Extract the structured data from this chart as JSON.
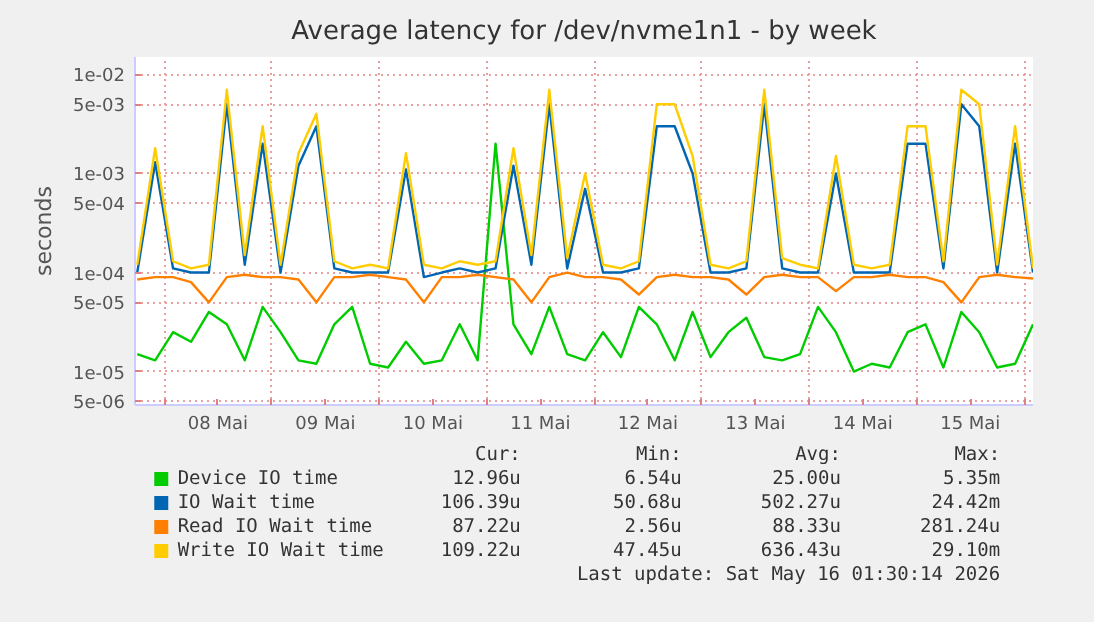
{
  "chart_data": {
    "type": "line",
    "title": "Average latency for /dev/nvme1n1 - by week",
    "ylabel": "seconds",
    "x": [
      "2026-05-07T18:00",
      "2026-05-07T22:00",
      "2026-05-08T02:00",
      "2026-05-08T06:00",
      "2026-05-08T10:00",
      "2026-05-08T14:00",
      "2026-05-08T18:00",
      "2026-05-08T22:00",
      "2026-05-09T02:00",
      "2026-05-09T06:00",
      "2026-05-09T10:00",
      "2026-05-09T14:00",
      "2026-05-09T18:00",
      "2026-05-09T22:00",
      "2026-05-10T02:00",
      "2026-05-10T06:00",
      "2026-05-10T10:00",
      "2026-05-10T14:00",
      "2026-05-10T18:00",
      "2026-05-10T22:00",
      "2026-05-11T02:00",
      "2026-05-11T06:00",
      "2026-05-11T10:00",
      "2026-05-11T14:00",
      "2026-05-11T18:00",
      "2026-05-11T22:00",
      "2026-05-12T02:00",
      "2026-05-12T06:00",
      "2026-05-12T10:00",
      "2026-05-12T14:00",
      "2026-05-12T18:00",
      "2026-05-12T22:00",
      "2026-05-13T02:00",
      "2026-05-13T06:00",
      "2026-05-13T10:00",
      "2026-05-13T14:00",
      "2026-05-13T18:00",
      "2026-05-13T22:00",
      "2026-05-14T02:00",
      "2026-05-14T06:00",
      "2026-05-14T10:00",
      "2026-05-14T14:00",
      "2026-05-14T18:00",
      "2026-05-14T22:00",
      "2026-05-15T02:00",
      "2026-05-15T06:00",
      "2026-05-15T10:00",
      "2026-05-15T14:00",
      "2026-05-15T18:00",
      "2026-05-15T22:00",
      "2026-05-16T02:00"
    ],
    "series": [
      {
        "name": "Device IO time",
        "color": "#00cc00",
        "values": [
          1.5e-05,
          1.3e-05,
          2.5e-05,
          2e-05,
          4e-05,
          3e-05,
          1.3e-05,
          4.5e-05,
          2.5e-05,
          1.3e-05,
          1.2e-05,
          3e-05,
          4.5e-05,
          1.2e-05,
          1.1e-05,
          2e-05,
          1.2e-05,
          1.3e-05,
          3e-05,
          1.3e-05,
          0.002,
          3e-05,
          1.5e-05,
          4.5e-05,
          1.5e-05,
          1.3e-05,
          2.5e-05,
          1.4e-05,
          4.5e-05,
          3e-05,
          1.3e-05,
          4e-05,
          1.4e-05,
          2.5e-05,
          3.5e-05,
          1.4e-05,
          1.3e-05,
          1.5e-05,
          4.5e-05,
          2.5e-05,
          1e-05,
          1.2e-05,
          1.1e-05,
          2.5e-05,
          3e-05,
          1.1e-05,
          4e-05,
          2.5e-05,
          1.1e-05,
          1.2e-05,
          3e-05
        ]
      },
      {
        "name": "IO Wait time",
        "color": "#0066b3",
        "values": [
          0.0001,
          0.0013,
          0.00011,
          0.0001,
          0.0001,
          0.005,
          0.00012,
          0.002,
          0.0001,
          0.0012,
          0.003,
          0.00011,
          0.0001,
          0.0001,
          0.0001,
          0.0011,
          9e-05,
          0.0001,
          0.00011,
          0.0001,
          0.00011,
          0.0012,
          0.00012,
          0.005,
          0.00011,
          0.0007,
          0.0001,
          0.0001,
          0.00011,
          0.003,
          0.003,
          0.001,
          0.0001,
          0.0001,
          0.00011,
          0.005,
          0.00011,
          0.0001,
          0.0001,
          0.001,
          0.0001,
          0.0001,
          0.0001,
          0.002,
          0.002,
          0.00011,
          0.005,
          0.003,
          0.0001,
          0.002,
          0.0001
        ]
      },
      {
        "name": "Read IO Wait time",
        "color": "#ff8000",
        "values": [
          8.5e-05,
          9e-05,
          9e-05,
          8e-05,
          5e-05,
          9e-05,
          9.5e-05,
          9e-05,
          9e-05,
          8.5e-05,
          5e-05,
          9e-05,
          9e-05,
          9.5e-05,
          9e-05,
          8.5e-05,
          5e-05,
          9e-05,
          9e-05,
          9.5e-05,
          9e-05,
          8.5e-05,
          5e-05,
          9e-05,
          0.0001,
          9e-05,
          9e-05,
          8.5e-05,
          6e-05,
          9e-05,
          9.5e-05,
          9e-05,
          9e-05,
          8.5e-05,
          6e-05,
          9e-05,
          9.5e-05,
          9e-05,
          9e-05,
          6.5e-05,
          9e-05,
          9e-05,
          9.5e-05,
          9e-05,
          9e-05,
          8e-05,
          5e-05,
          9e-05,
          9.5e-05,
          9e-05,
          8.7e-05
        ]
      },
      {
        "name": "Write IO Wait time",
        "color": "#ffcc00",
        "values": [
          0.00012,
          0.0018,
          0.00013,
          0.00011,
          0.00012,
          0.007,
          0.00015,
          0.003,
          0.00012,
          0.0016,
          0.004,
          0.00013,
          0.00011,
          0.00012,
          0.00011,
          0.0016,
          0.00012,
          0.00011,
          0.00013,
          0.00012,
          0.00013,
          0.0018,
          0.00015,
          0.007,
          0.00014,
          0.001,
          0.00012,
          0.00011,
          0.00013,
          0.005,
          0.005,
          0.0015,
          0.00012,
          0.00011,
          0.00013,
          0.007,
          0.00014,
          0.00012,
          0.00011,
          0.0015,
          0.00012,
          0.00011,
          0.00012,
          0.003,
          0.003,
          0.00013,
          0.007,
          0.005,
          0.00012,
          0.003,
          0.00011
        ]
      }
    ],
    "log": "y",
    "ylim": [
      4.6e-06,
      0.015
    ],
    "yticks": [
      {
        "value": 5e-06,
        "label": "5e-06"
      },
      {
        "value": 1e-05,
        "label": "1e-05"
      },
      {
        "value": 5e-05,
        "label": "5e-05"
      },
      {
        "value": 0.0001,
        "label": "1e-04"
      },
      {
        "value": 0.0005,
        "label": "5e-04"
      },
      {
        "value": 0.001,
        "label": "1e-03"
      },
      {
        "value": 0.005,
        "label": "5e-03"
      },
      {
        "value": 0.01,
        "label": "1e-02"
      }
    ],
    "xlim": [
      "2026-05-07T17:30",
      "2026-05-16T02:00"
    ],
    "xticks": [
      {
        "value": "2026-05-08T00:00",
        "label": null
      },
      {
        "value": "2026-05-08T12:00",
        "label": "08 Mai"
      },
      {
        "value": "2026-05-09T00:00",
        "label": null
      },
      {
        "value": "2026-05-09T12:00",
        "label": "09 Mai"
      },
      {
        "value": "2026-05-10T00:00",
        "label": null
      },
      {
        "value": "2026-05-10T12:00",
        "label": "10 Mai"
      },
      {
        "value": "2026-05-11T00:00",
        "label": null
      },
      {
        "value": "2026-05-11T12:00",
        "label": "11 Mai"
      },
      {
        "value": "2026-05-12T00:00",
        "label": null
      },
      {
        "value": "2026-05-12T12:00",
        "label": "12 Mai"
      },
      {
        "value": "2026-05-13T00:00",
        "label": null
      },
      {
        "value": "2026-05-13T12:00",
        "label": "13 Mai"
      },
      {
        "value": "2026-05-14T00:00",
        "label": null
      },
      {
        "value": "2026-05-14T12:00",
        "label": "14 Mai"
      },
      {
        "value": "2026-05-15T00:00",
        "label": null
      },
      {
        "value": "2026-05-15T12:00",
        "label": "15 Mai"
      },
      {
        "value": "2026-05-16T00:00",
        "label": null
      }
    ],
    "grid": true,
    "legend": "bottom",
    "annotations": [
      "Cur:",
      "Min:",
      "Avg:",
      "Max:",
      "12.96u",
      "6.54u",
      "25.00u",
      "5.35m",
      "106.39u",
      "50.68u",
      "502.27u",
      "24.42m",
      "87.22u",
      "2.56u",
      "88.33u",
      "281.24u",
      "109.22u",
      "47.45u",
      "636.43u",
      "29.10m",
      "Last update: Sat May 16 01:30:14 2026"
    ]
  }
}
